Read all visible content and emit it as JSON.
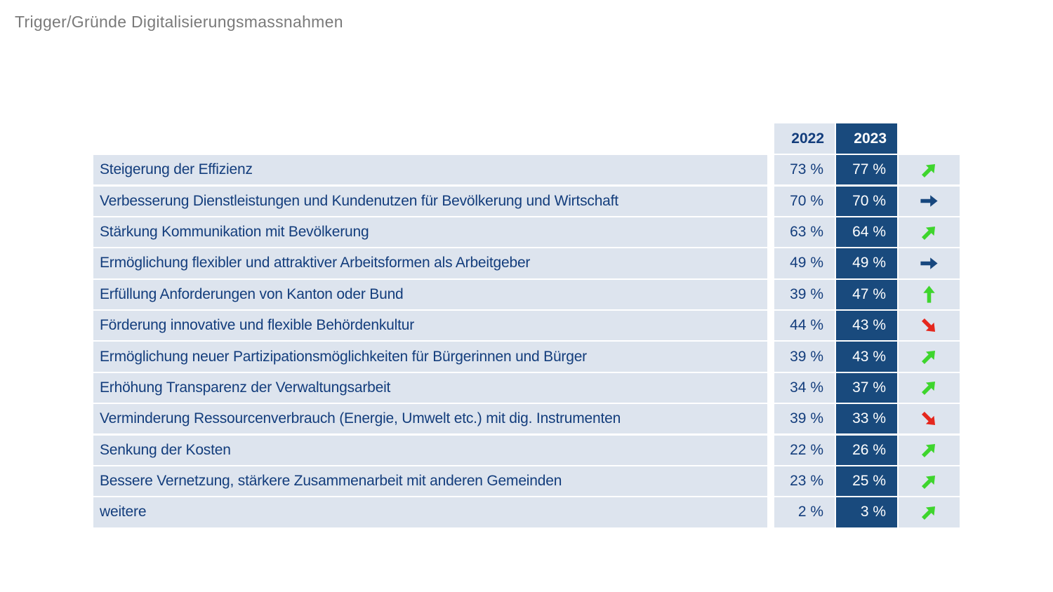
{
  "title": "Trigger/Gründe Digitalisierungsmassnahmen",
  "palette": {
    "cell_light": "#dde4ee",
    "cell_dark": "#194a7d",
    "text_navy": "#133d7c",
    "text_white": "#ffffff",
    "trend_green": "#3ed52d",
    "trend_navy": "#17477e",
    "trend_red": "#e5271d",
    "title_gray": "#7a7a7a"
  },
  "table": {
    "col_headers": [
      "2022",
      "2023"
    ],
    "rows": [
      {
        "label": "Steigerung der Effizienz",
        "y2022": "73 %",
        "y2023": "77 %",
        "trend": "up-right"
      },
      {
        "label": "Verbesserung Dienstleistungen und Kundenutzen für Bevölkerung und Wirtschaft",
        "y2022": "70 %",
        "y2023": "70 %",
        "trend": "right"
      },
      {
        "label": "Stärkung Kommunikation mit Bevölkerung",
        "y2022": "63 %",
        "y2023": "64 %",
        "trend": "up-right"
      },
      {
        "label": "Ermöglichung flexibler und attraktiver Arbeitsformen als Arbeitgeber",
        "y2022": "49 %",
        "y2023": "49 %",
        "trend": "right"
      },
      {
        "label": "Erfüllung Anforderungen von Kanton oder Bund",
        "y2022": "39 %",
        "y2023": "47 %",
        "trend": "up"
      },
      {
        "label": "Förderung innovative und flexible Behördenkultur",
        "y2022": "44 %",
        "y2023": "43 %",
        "trend": "down-right"
      },
      {
        "label": "Ermöglichung neuer Partizipationsmöglichkeiten für Bürgerinnen und Bürger",
        "y2022": "39 %",
        "y2023": "43 %",
        "trend": "up-right"
      },
      {
        "label": "Erhöhung Transparenz der Verwaltungsarbeit",
        "y2022": "34 %",
        "y2023": "37 %",
        "trend": "up-right"
      },
      {
        "label": "Verminderung Ressourcenverbrauch (Energie, Umwelt etc.) mit dig. Instrumenten",
        "y2022": "39 %",
        "y2023": "33 %",
        "trend": "down-right"
      },
      {
        "label": "Senkung der Kosten",
        "y2022": "22 %",
        "y2023": "26 %",
        "trend": "up-right"
      },
      {
        "label": "Bessere Vernetzung, stärkere Zusammenarbeit mit anderen Gemeinden",
        "y2022": "23 %",
        "y2023": "25 %",
        "trend": "up-right"
      },
      {
        "label": "weitere",
        "y2022": "2 %",
        "y2023": "3 %",
        "trend": "up-right"
      }
    ]
  },
  "chart_data": {
    "type": "table",
    "title": "Trigger/Gründe Digitalisierungsmassnahmen",
    "categories": [
      "Steigerung der Effizienz",
      "Verbesserung Dienstleistungen und Kundenutzen für Bevölkerung und Wirtschaft",
      "Stärkung Kommunikation mit Bevölkerung",
      "Ermöglichung flexibler und attraktiver Arbeitsformen als Arbeitgeber",
      "Erfüllung Anforderungen von Kanton oder Bund",
      "Förderung innovative und flexible Behördenkultur",
      "Ermöglichung neuer Partizipationsmöglichkeiten für Bürgerinnen und Bürger",
      "Erhöhung Transparenz der Verwaltungsarbeit",
      "Verminderung Ressourcenverbrauch (Energie, Umwelt etc.) mit dig. Instrumenten",
      "Senkung der Kosten",
      "Bessere Vernetzung, stärkere Zusammenarbeit mit anderen Gemeinden",
      "weitere"
    ],
    "series": [
      {
        "name": "2022",
        "values": [
          73,
          70,
          63,
          49,
          39,
          44,
          39,
          34,
          39,
          22,
          23,
          2
        ]
      },
      {
        "name": "2023",
        "values": [
          77,
          70,
          64,
          49,
          47,
          43,
          43,
          37,
          33,
          26,
          25,
          3
        ]
      }
    ],
    "trends": [
      "up-right",
      "right",
      "up-right",
      "right",
      "up",
      "down-right",
      "up-right",
      "up-right",
      "down-right",
      "up-right",
      "up-right",
      "up-right"
    ],
    "unit": "%"
  }
}
